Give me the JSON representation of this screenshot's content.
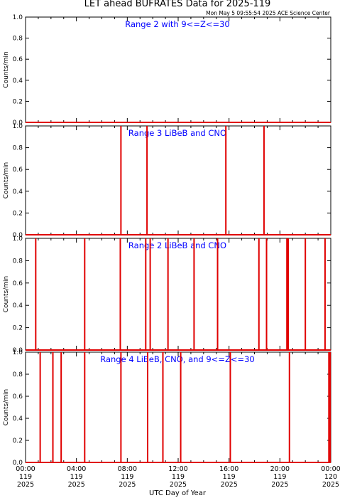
{
  "header": {
    "title": "LET ahead BUFRATES Data for 2025-119",
    "subtitle": "Mon May  5 09:55:54 2025 ACE Science Center"
  },
  "colors": {
    "trace": "#e00000",
    "panel_label": "#0000ff",
    "axes": "#000000"
  },
  "xaxis": {
    "label": "UTC Day of Year",
    "ticks": [
      {
        "time": "00:00",
        "doy": "119",
        "year": "2025",
        "hour": 0
      },
      {
        "time": "04:00",
        "doy": "119",
        "year": "2025",
        "hour": 4
      },
      {
        "time": "08:00",
        "doy": "119",
        "year": "2025",
        "hour": 8
      },
      {
        "time": "12:00",
        "doy": "119",
        "year": "2025",
        "hour": 12
      },
      {
        "time": "16:00",
        "doy": "119",
        "year": "2025",
        "hour": 16
      },
      {
        "time": "20:00",
        "doy": "119",
        "year": "2025",
        "hour": 20
      },
      {
        "time": "00:00",
        "doy": "120",
        "year": "2025",
        "hour": 24
      }
    ]
  },
  "chart_data": [
    {
      "type": "line",
      "title": "Range 2 with 9<=Z<=30",
      "ylabel": "Counts/min",
      "xlabel": "UTC Day of Year",
      "xlim": [
        0,
        24
      ],
      "ylim": [
        0,
        1
      ],
      "yticks": [
        "0.0",
        "0.2",
        "0.4",
        "0.6",
        "0.8",
        "1.0"
      ],
      "baseline": 0,
      "series": [
        {
          "spikes_hours": [],
          "spike_value": 1
        }
      ]
    },
    {
      "type": "line",
      "title": "Range 3 LiBeB and CNO",
      "ylabel": "Counts/min",
      "xlabel": "UTC Day of Year",
      "xlim": [
        0,
        24
      ],
      "ylim": [
        0,
        1
      ],
      "yticks": [
        "0.0",
        "0.2",
        "0.4",
        "0.6",
        "0.8",
        "1.0"
      ],
      "baseline": 0,
      "series": [
        {
          "spikes_hours": [
            7.5,
            9.55,
            15.75,
            18.75
          ],
          "spike_value": 1
        }
      ]
    },
    {
      "type": "line",
      "title": "Range 2 LiBeB and CNO",
      "ylabel": "Counts/min",
      "xlabel": "UTC Day of Year",
      "xlim": [
        0,
        24
      ],
      "ylim": [
        0,
        1
      ],
      "yticks": [
        "0.0",
        "0.2",
        "0.4",
        "0.6",
        "0.8",
        "1.0"
      ],
      "baseline": 0,
      "series": [
        {
          "spikes_hours": [
            0.8,
            4.65,
            7.45,
            9.45,
            9.8,
            11.2,
            13.25,
            15.1,
            18.35,
            18.95,
            20.55,
            20.65,
            22.0,
            23.55
          ],
          "spike_value": 1
        }
      ]
    },
    {
      "type": "line",
      "title": "Range 4 LiBeB, CNO, and 9<=Z<=30",
      "ylabel": "Counts/min",
      "xlabel": "UTC Day of Year",
      "xlim": [
        0,
        24
      ],
      "ylim": [
        0,
        1
      ],
      "yticks": [
        "0.0",
        "0.2",
        "0.4",
        "0.6",
        "0.8",
        "1.0"
      ],
      "baseline": 0,
      "series": [
        {
          "spikes_hours": [
            1.15,
            2.15,
            2.8,
            4.65,
            7.5,
            9.6,
            10.8,
            12.2,
            16.1,
            20.75,
            23.85,
            23.95
          ],
          "spike_value": 1
        }
      ]
    }
  ]
}
